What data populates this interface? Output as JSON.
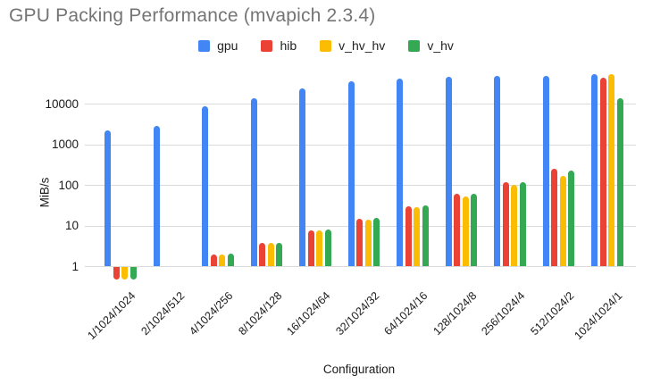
{
  "title": "GPU Packing Performance (mvapich 2.3.4)",
  "colors": {
    "gpu": "#4285F4",
    "hib": "#EA4335",
    "v_hv_hv": "#FBBC04",
    "v_hv": "#34A853",
    "gridline": "#dadada",
    "title_text": "#757575"
  },
  "chart_data": {
    "type": "bar",
    "title": "GPU Packing Performance (mvapich 2.3.4)",
    "xlabel": "Configuration",
    "ylabel": "MiB/s",
    "y_scale": "log",
    "y_ticks": [
      1,
      10,
      100,
      1000,
      10000
    ],
    "ylim": [
      0.4,
      70000
    ],
    "grid": true,
    "legend_position": "top",
    "categories": [
      "1/1024/1024",
      "2/1024/512",
      "4/1024/256",
      "8/1024/128",
      "16/1024/64",
      "32/1024/32",
      "64/1024/16",
      "128/1024/8",
      "256/1024/4",
      "512/1024/2",
      "1024/1024/1"
    ],
    "series": [
      {
        "name": "gpu",
        "color": "#4285F4",
        "values": [
          2200,
          2800,
          8800,
          13500,
          24000,
          36000,
          43000,
          47000,
          50000,
          48000,
          54000
        ]
      },
      {
        "name": "hib",
        "color": "#EA4335",
        "values": [
          0.5,
          1.0,
          1.9,
          3.7,
          7.6,
          15,
          30,
          60,
          120,
          250,
          44000
        ]
      },
      {
        "name": "v_hv_hv",
        "color": "#FBBC04",
        "values": [
          0.5,
          1.0,
          1.9,
          3.7,
          7.6,
          14,
          28,
          53,
          100,
          165,
          55000
        ]
      },
      {
        "name": "v_hv",
        "color": "#34A853",
        "values": [
          0.5,
          1.0,
          2.0,
          3.8,
          7.8,
          15.5,
          31,
          60,
          120,
          230,
          13500
        ]
      }
    ]
  }
}
